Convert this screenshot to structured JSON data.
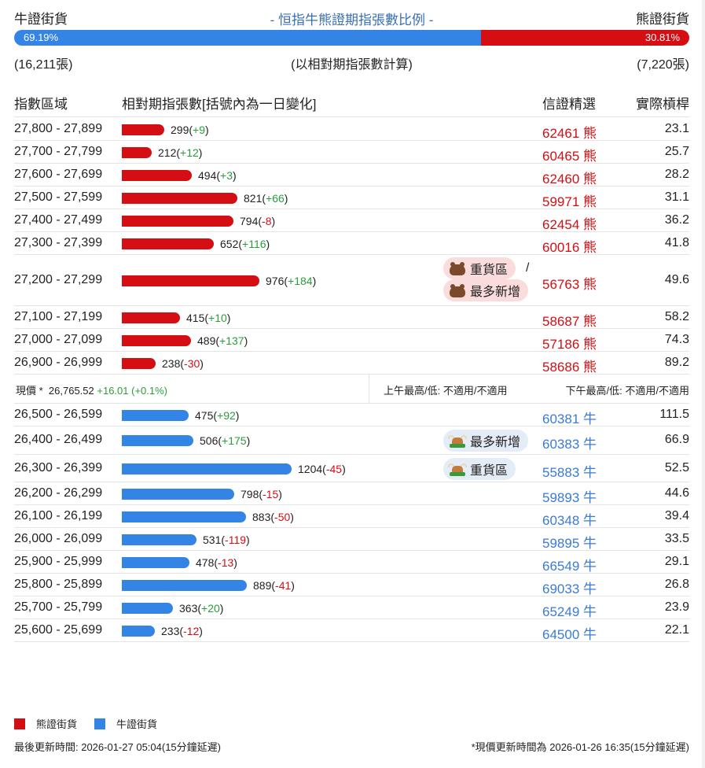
{
  "header": {
    "bull_label": "牛證街貨",
    "title": "- 恒指牛熊證期指張數比例 -",
    "bear_label": "熊證街貨"
  },
  "ratio": {
    "bull_pct_text": "69.19%",
    "bear_pct_text": "30.81%",
    "bull_fraction": 0.6919,
    "bull_count": "(16,211張)",
    "basis": "(以相對期指張數計算)",
    "bear_count": "(7,220張)"
  },
  "columns": {
    "range": "指數區域",
    "contracts": "相對期指張數[括號內為一日變化]",
    "pick": "信證精選",
    "leverage": "實際槓桿"
  },
  "bear_rows": [
    {
      "range": "27,800 - 27,899",
      "count": "299",
      "change": "+9",
      "value": 299,
      "code": "62461 熊",
      "leverage": "23.1"
    },
    {
      "range": "27,700 - 27,799",
      "count": "212",
      "change": "+12",
      "value": 212,
      "code": "60465 熊",
      "leverage": "25.7"
    },
    {
      "range": "27,600 - 27,699",
      "count": "494",
      "change": "+3",
      "value": 494,
      "code": "62460 熊",
      "leverage": "28.2"
    },
    {
      "range": "27,500 - 27,599",
      "count": "821",
      "change": "+66",
      "value": 821,
      "code": "59971 熊",
      "leverage": "31.1"
    },
    {
      "range": "27,400 - 27,499",
      "count": "794",
      "change": "-8",
      "value": 794,
      "code": "62454 熊",
      "leverage": "36.2"
    },
    {
      "range": "27,300 - 27,399",
      "count": "652",
      "change": "+116",
      "value": 652,
      "code": "60016 熊",
      "leverage": "41.8"
    },
    {
      "range": "27,200 - 27,299",
      "count": "976",
      "change": "+184",
      "value": 976,
      "code": "56763 熊",
      "leverage": "49.6",
      "badges": [
        "重貨區",
        "最多新增"
      ]
    },
    {
      "range": "27,100 - 27,199",
      "count": "415",
      "change": "+10",
      "value": 415,
      "code": "58687 熊",
      "leverage": "58.2"
    },
    {
      "range": "27,000 - 27,099",
      "count": "489",
      "change": "+137",
      "value": 489,
      "code": "57186 熊",
      "leverage": "74.3"
    },
    {
      "range": "26,900 - 26,999",
      "count": "238",
      "change": "-30",
      "value": 238,
      "code": "58686 熊",
      "leverage": "89.2"
    }
  ],
  "price": {
    "label": "現價 *",
    "value": "26,765.52",
    "change": "+16.01 (+0.1%)",
    "am": "上午最高/低: 不適用/不適用",
    "pm": "下午最高/低: 不適用/不適用"
  },
  "bull_rows": [
    {
      "range": "26,500 - 26,599",
      "count": "475",
      "change": "+92",
      "value": 475,
      "code": "60381 牛",
      "leverage": "111.5"
    },
    {
      "range": "26,400 - 26,499",
      "count": "506",
      "change": "+175",
      "value": 506,
      "code": "60383 牛",
      "leverage": "66.9",
      "badge": "最多新增"
    },
    {
      "range": "26,300 - 26,399",
      "count": "1204",
      "change": "-45",
      "value": 1204,
      "code": "55883 牛",
      "leverage": "52.5",
      "badge": "重貨區"
    },
    {
      "range": "26,200 - 26,299",
      "count": "798",
      "change": "-15",
      "value": 798,
      "code": "59893 牛",
      "leverage": "44.6"
    },
    {
      "range": "26,100 - 26,199",
      "count": "883",
      "change": "-50",
      "value": 883,
      "code": "60348 牛",
      "leverage": "39.4"
    },
    {
      "range": "26,000 - 26,099",
      "count": "531",
      "change": "-119",
      "value": 531,
      "code": "59895 牛",
      "leverage": "33.5"
    },
    {
      "range": "25,900 - 25,999",
      "count": "478",
      "change": "-13",
      "value": 478,
      "code": "66549 牛",
      "leverage": "29.1"
    },
    {
      "range": "25,800 - 25,899",
      "count": "889",
      "change": "-41",
      "value": 889,
      "code": "69033 牛",
      "leverage": "26.8"
    },
    {
      "range": "25,700 - 25,799",
      "count": "363",
      "change": "+20",
      "value": 363,
      "code": "65249 牛",
      "leverage": "23.9"
    },
    {
      "range": "25,600 - 25,699",
      "count": "233",
      "change": "-12",
      "value": 233,
      "code": "64500 牛",
      "leverage": "22.1"
    }
  ],
  "legend": {
    "bear": "熊證街貨",
    "bull": "牛證街貨",
    "bear_color": "#d50e13",
    "bull_color": "#3384e4"
  },
  "footer": {
    "updated": "最後更新時間: 2026-01-27 05:04(15分鐘延遲)",
    "price_updated": "*現價更新時間為 2026-01-26 16:35(15分鐘延遲)"
  }
}
